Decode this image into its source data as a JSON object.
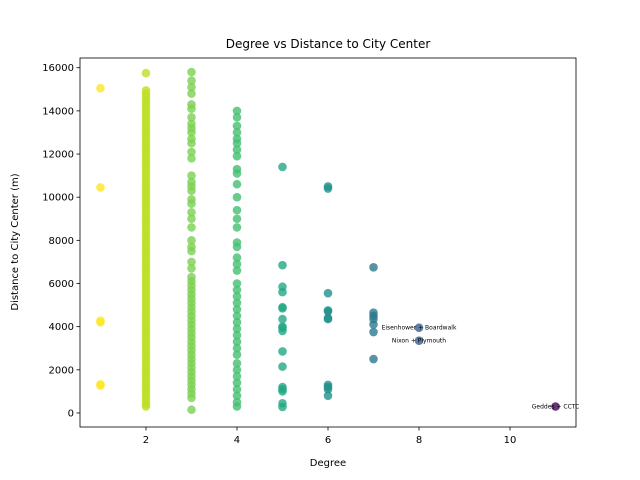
{
  "chart_data": {
    "type": "scatter",
    "title": "Degree vs Distance to City Center",
    "xlabel": "Degree",
    "ylabel": "Distance to City Center (m)",
    "xlim": [
      0.55,
      11.45
    ],
    "ylim": [
      -650,
      16450
    ],
    "xticks": [
      2,
      4,
      6,
      8,
      10
    ],
    "yticks": [
      0,
      2000,
      4000,
      6000,
      8000,
      10000,
      12000,
      14000,
      16000
    ],
    "grid": false,
    "legend": false,
    "color_scale": "viridis (by degree, reversed)",
    "degree_colors": {
      "1": "#fde725",
      "2": "#bddf26",
      "3": "#7ad151",
      "4": "#44bf70",
      "5": "#22a884",
      "6": "#21918c",
      "7": "#2a788e",
      "8": "#355f8d",
      "11": "#440154"
    },
    "series": [
      {
        "degree": 1,
        "y": [
          15050,
          10450,
          4280,
          4200,
          1330,
          1270
        ]
      },
      {
        "degree": 2,
        "y": [
          15750,
          14950,
          14800,
          14650,
          14500,
          14350,
          14200,
          14050,
          13900,
          13750,
          13600,
          13450,
          13300,
          13150,
          13000,
          12850,
          12700,
          12550,
          12400,
          12250,
          12100,
          11950,
          11800,
          11650,
          11500,
          11350,
          11200,
          11050,
          10900,
          10750,
          10600,
          10450,
          10300,
          10150,
          10000,
          9850,
          9700,
          9550,
          9400,
          9250,
          9100,
          8950,
          8800,
          8650,
          8500,
          8350,
          8200,
          8050,
          7900,
          7750,
          7600,
          7450,
          7300,
          7150,
          7000,
          6850,
          6700,
          6550,
          6400,
          6250,
          6100,
          5950,
          5800,
          5650,
          5500,
          5350,
          5200,
          5050,
          4900,
          4750,
          4600,
          4450,
          4300,
          4150,
          4000,
          3850,
          3700,
          3550,
          3400,
          3250,
          3100,
          2950,
          2800,
          2650,
          2500,
          2350,
          2200,
          2050,
          1900,
          1750,
          1600,
          1450,
          1300,
          1150,
          1000,
          850,
          700,
          550,
          400,
          300
        ]
      },
      {
        "degree": 3,
        "y": [
          15800,
          15400,
          15100,
          14800,
          14300,
          14100,
          13700,
          13400,
          13200,
          13000,
          12700,
          12500,
          12100,
          11800,
          11000,
          10700,
          10500,
          10300,
          9900,
          9700,
          9300,
          9000,
          8600,
          8000,
          7700,
          7500,
          7000,
          6700,
          6300,
          6100,
          5900,
          5700,
          5500,
          5300,
          5100,
          4900,
          4700,
          4500,
          4300,
          4100,
          3900,
          3700,
          3500,
          3300,
          3100,
          2900,
          2700,
          2500,
          2300,
          2100,
          1900,
          1700,
          1500,
          1300,
          1100,
          900,
          700,
          150
        ]
      },
      {
        "degree": 4,
        "y": [
          14000,
          13700,
          13300,
          13000,
          12700,
          12500,
          12200,
          11900,
          11300,
          11100,
          10600,
          10000,
          9400,
          9000,
          8600,
          7900,
          7700,
          7200,
          6900,
          6600,
          6000,
          5700,
          5400,
          5100,
          4800,
          4500,
          4200,
          3900,
          3600,
          3300,
          3000,
          2700,
          2300,
          2000,
          1700,
          1400,
          1100,
          800,
          500,
          300
        ]
      },
      {
        "degree": 5,
        "y": [
          11400,
          6850,
          5850,
          5600,
          4900,
          4850,
          4350,
          4000,
          3950,
          3800,
          2850,
          2150,
          1200,
          1100,
          1000,
          450,
          280
        ]
      },
      {
        "degree": 6,
        "y": [
          10500,
          10400,
          5550,
          4750,
          4700,
          4400,
          4350,
          1300,
          1200,
          1100,
          800
        ]
      },
      {
        "degree": 7,
        "y": [
          6750,
          4650,
          4500,
          4350,
          4100,
          3750,
          2500
        ]
      },
      {
        "degree": 8,
        "y": [
          3950,
          3350
        ]
      },
      {
        "degree": 11,
        "y": [
          300
        ]
      }
    ],
    "annotations": [
      {
        "text": "Eisenhower + Boardwalk",
        "x": 8,
        "y": 3950
      },
      {
        "text": "Nixon + Plymouth",
        "x": 8,
        "y": 3350
      },
      {
        "text": "Geddes + CCTC",
        "x": 11,
        "y": 300
      }
    ]
  }
}
